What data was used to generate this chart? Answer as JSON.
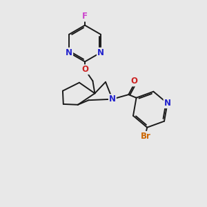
{
  "background_color": "#e8e8e8",
  "atom_colors": {
    "N": "#2222cc",
    "O": "#cc2222",
    "F": "#cc44cc",
    "Br": "#cc6600"
  },
  "bond_color": "#1a1a1a",
  "bond_width": 1.4
}
